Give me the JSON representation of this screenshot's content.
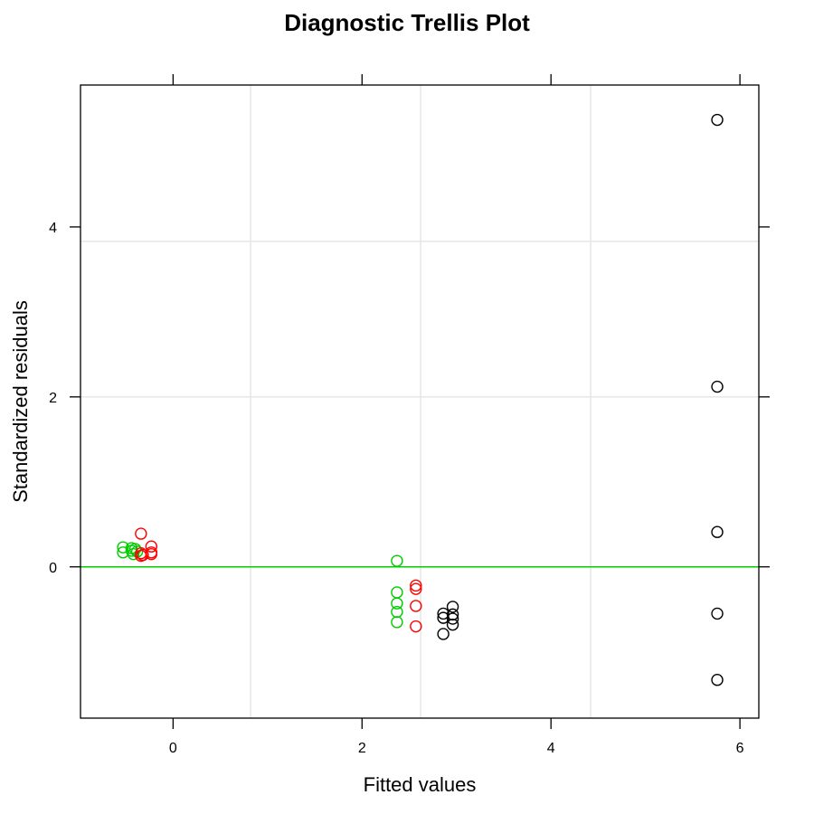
{
  "chart_data": {
    "type": "scatter",
    "title": "Diagnostic Trellis Plot",
    "xlabel": "Fitted values",
    "ylabel": "Standardized residuals",
    "xlim": [
      -0.98,
      6.2
    ],
    "ylim": [
      -1.78,
      5.67
    ],
    "x_ticks": [
      0,
      2,
      4,
      6
    ],
    "y_ticks": [
      0,
      2,
      4
    ],
    "grid": true,
    "grid_x": [
      0.82,
      2.62,
      4.42
    ],
    "grid_y": [
      2.0,
      3.83
    ],
    "reference_line": {
      "y": 0,
      "color": "#00cc00"
    },
    "series": [
      {
        "color": "#00cc00",
        "points": [
          [
            -0.53,
            0.23
          ],
          [
            -0.53,
            0.17
          ],
          [
            -0.44,
            0.22
          ],
          [
            -0.44,
            0.19
          ],
          [
            -0.42,
            0.15
          ],
          [
            -0.4,
            0.21
          ],
          [
            -0.38,
            0.18
          ],
          [
            2.37,
            0.07
          ],
          [
            2.37,
            -0.3
          ],
          [
            2.37,
            -0.43
          ],
          [
            2.37,
            -0.53
          ],
          [
            2.37,
            -0.65
          ]
        ]
      },
      {
        "color": "#ff0000",
        "points": [
          [
            -0.34,
            0.39
          ],
          [
            -0.34,
            0.16
          ],
          [
            -0.34,
            0.13
          ],
          [
            -0.32,
            0.14
          ],
          [
            -0.23,
            0.24
          ],
          [
            -0.23,
            0.17
          ],
          [
            -0.23,
            0.15
          ],
          [
            2.57,
            -0.22
          ],
          [
            2.57,
            -0.26
          ],
          [
            2.57,
            -0.46
          ],
          [
            2.57,
            -0.7
          ]
        ]
      },
      {
        "color": "#000000",
        "points": [
          [
            2.86,
            -0.55
          ],
          [
            2.86,
            -0.6
          ],
          [
            2.86,
            -0.79
          ],
          [
            2.96,
            -0.47
          ],
          [
            2.96,
            -0.56
          ],
          [
            2.96,
            -0.61
          ],
          [
            2.96,
            -0.68
          ],
          [
            5.76,
            5.26
          ],
          [
            5.76,
            2.12
          ],
          [
            5.76,
            0.41
          ],
          [
            5.76,
            -0.55
          ],
          [
            5.76,
            -1.33
          ]
        ]
      }
    ]
  },
  "colors": {
    "grid": "#e6e6e6",
    "frame": "#000000"
  }
}
